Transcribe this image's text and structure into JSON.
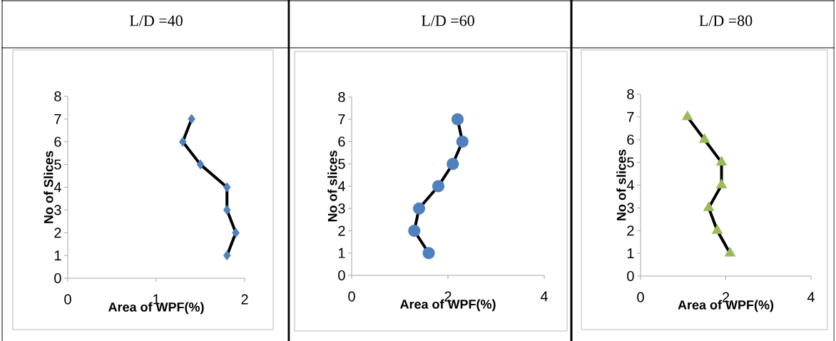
{
  "chart_data": [
    {
      "type": "line",
      "title": "L/D =40",
      "xlabel": "Area of WPF(%)",
      "ylabel": "No of Slices",
      "xlim": [
        0,
        2
      ],
      "xticks": [
        0,
        1,
        2
      ],
      "ylim": [
        0,
        8
      ],
      "yticks": [
        0,
        1,
        2,
        3,
        4,
        5,
        6,
        7,
        8
      ],
      "marker": "diamond",
      "line_style": "solid",
      "series": [
        {
          "color": "#4f81bd",
          "x": [
            1.8,
            1.9,
            1.8,
            1.8,
            1.5,
            1.3,
            1.4
          ],
          "values": [
            1,
            2,
            3,
            4,
            5,
            6,
            7
          ]
        }
      ]
    },
    {
      "type": "line",
      "title": "L/D =60",
      "xlabel": "Area of WPF(%)",
      "ylabel": "No of slices",
      "xlim": [
        0,
        4
      ],
      "xticks": [
        0,
        2,
        4
      ],
      "ylim": [
        0,
        8
      ],
      "yticks": [
        0,
        1,
        2,
        3,
        4,
        5,
        6,
        7,
        8
      ],
      "marker": "circle",
      "line_style": "solid",
      "series": [
        {
          "color": "#4f81bd",
          "x": [
            1.6,
            1.3,
            1.4,
            1.8,
            2.1,
            2.3,
            2.2
          ],
          "values": [
            1,
            2,
            3,
            4,
            5,
            6,
            7
          ]
        }
      ]
    },
    {
      "type": "line",
      "title": "L/D =80",
      "xlabel": "Area  of WPF(%)",
      "ylabel": "No of slices",
      "xlim": [
        0,
        4
      ],
      "xticks": [
        0,
        2,
        4
      ],
      "ylim": [
        0,
        8
      ],
      "yticks": [
        0,
        1,
        2,
        3,
        4,
        5,
        6,
        7,
        8
      ],
      "marker": "triangle",
      "line_style": "solid",
      "series": [
        {
          "color": "#9bbb59",
          "x": [
            2.1,
            1.8,
            1.6,
            1.9,
            1.9,
            1.5,
            1.1
          ],
          "values": [
            1,
            2,
            3,
            4,
            5,
            6,
            7
          ]
        }
      ]
    }
  ]
}
